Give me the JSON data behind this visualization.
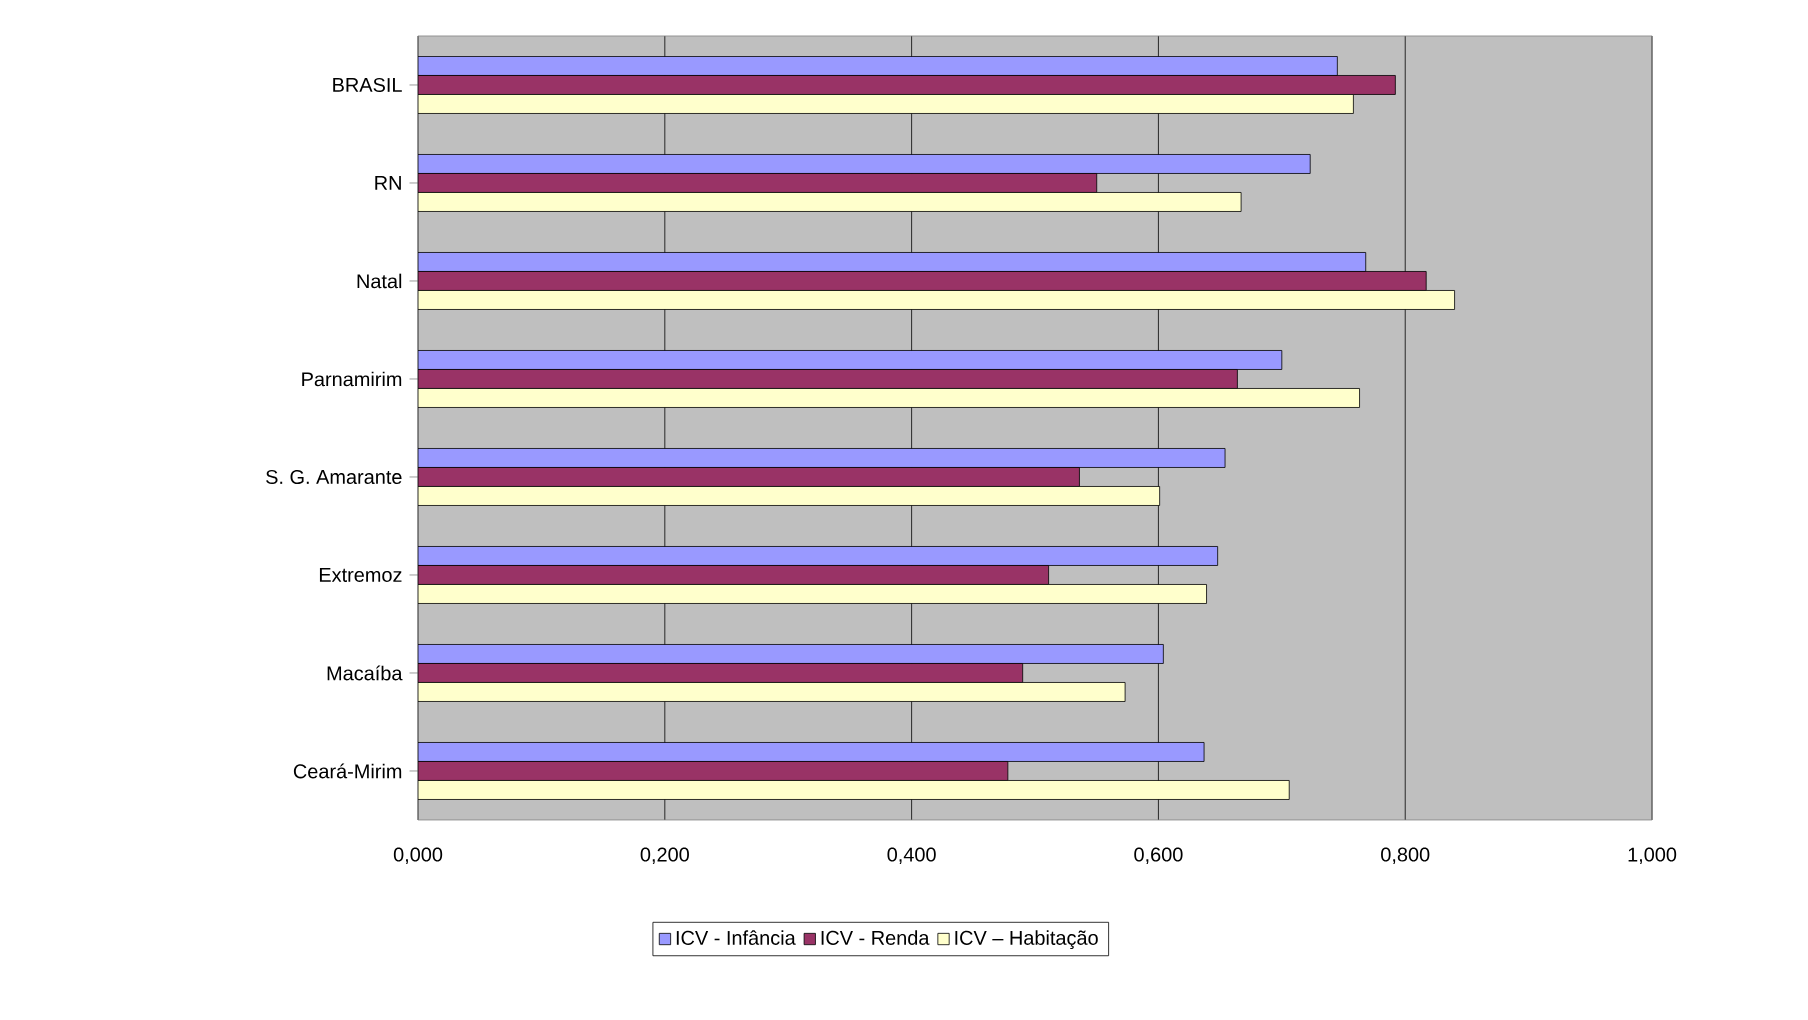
{
  "chart_data": {
    "type": "bar",
    "orientation": "horizontal",
    "categories": [
      "BRASIL",
      "RN",
      "Natal",
      "Parnamirim",
      "S. G. Amarante",
      "Extremoz",
      "Macaíba",
      "Ceará-Mirim"
    ],
    "series": [
      {
        "name": "ICV - Infância",
        "color": "#9999ff",
        "values": [
          0.745,
          0.723,
          0.768,
          0.7,
          0.654,
          0.648,
          0.604,
          0.637
        ]
      },
      {
        "name": "ICV - Renda",
        "color": "#993366",
        "values": [
          0.792,
          0.55,
          0.817,
          0.664,
          0.536,
          0.511,
          0.49,
          0.478
        ]
      },
      {
        "name": "ICV – Habitação",
        "color": "#ffffcc",
        "values": [
          0.758,
          0.667,
          0.84,
          0.763,
          0.601,
          0.639,
          0.573,
          0.706
        ]
      }
    ],
    "xlim": [
      0,
      1
    ],
    "xticks": [
      {
        "value": 0,
        "label": "0,000"
      },
      {
        "value": 0.2,
        "label": "0,200"
      },
      {
        "value": 0.4,
        "label": "0,400"
      },
      {
        "value": 0.6,
        "label": "0,600"
      },
      {
        "value": 0.8,
        "label": "0,800"
      },
      {
        "value": 1,
        "label": "1,000"
      }
    ],
    "grid": "x",
    "legend": "bottom"
  }
}
